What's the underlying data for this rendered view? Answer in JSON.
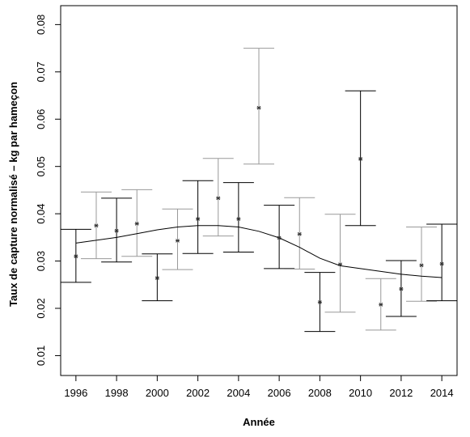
{
  "chart_data": {
    "type": "scatter",
    "title": "",
    "xlabel": "Année",
    "ylabel": "Taux de capture normalisé – kg par hameçon",
    "xlim": [
      1995.25,
      2014.75
    ],
    "ylim": [
      0.0058,
      0.084
    ],
    "xticks": [
      "1996",
      "1998",
      "2000",
      "2002",
      "2004",
      "2006",
      "2008",
      "2010",
      "2012",
      "2014"
    ],
    "yticks": [
      "0.01",
      "0.02",
      "0.03",
      "0.04",
      "0.05",
      "0.06",
      "0.07",
      "0.08"
    ],
    "grid": false,
    "legend": "none",
    "series": [
      {
        "x": [
          1996,
          1997,
          1998,
          1999,
          2000,
          2001,
          2002,
          2003,
          2004,
          2005,
          2006,
          2007,
          2008,
          2009,
          2010,
          2011,
          2012,
          2013,
          2014
        ],
        "y": [
          0.031,
          0.0375,
          0.0364,
          0.0379,
          0.0264,
          0.0343,
          0.0389,
          0.0433,
          0.0389,
          0.0624,
          0.0349,
          0.0357,
          0.0213,
          0.0293,
          0.0516,
          0.0208,
          0.0241,
          0.0291,
          0.0294
        ],
        "lower": [
          0.0255,
          0.0305,
          0.0298,
          0.031,
          0.0216,
          0.0282,
          0.0316,
          0.0353,
          0.0319,
          0.0505,
          0.0284,
          0.0283,
          0.0151,
          0.0192,
          0.0375,
          0.0154,
          0.0183,
          0.0215,
          0.0216
        ],
        "upper": [
          0.0367,
          0.0446,
          0.0433,
          0.0451,
          0.0315,
          0.041,
          0.047,
          0.0517,
          0.0466,
          0.075,
          0.0418,
          0.0434,
          0.0276,
          0.0399,
          0.066,
          0.0263,
          0.0301,
          0.0372,
          0.0378
        ]
      }
    ],
    "trend": {
      "x": [
        1996,
        1997,
        1998,
        1999,
        2000,
        2001,
        2002,
        2003,
        2004,
        2005,
        2006,
        2007,
        2008,
        2009,
        2010,
        2011,
        2012,
        2013,
        2014
      ],
      "y": [
        0.0338,
        0.0344,
        0.035,
        0.0358,
        0.0366,
        0.0372,
        0.0375,
        0.0375,
        0.0372,
        0.0363,
        0.0349,
        0.0329,
        0.0306,
        0.029,
        0.0284,
        0.0278,
        0.0272,
        0.0268,
        0.0265
      ]
    },
    "colors": {
      "black_bars": "#000000",
      "grey_bars": "#999999",
      "points": "#333333",
      "trend": "#000000"
    }
  }
}
